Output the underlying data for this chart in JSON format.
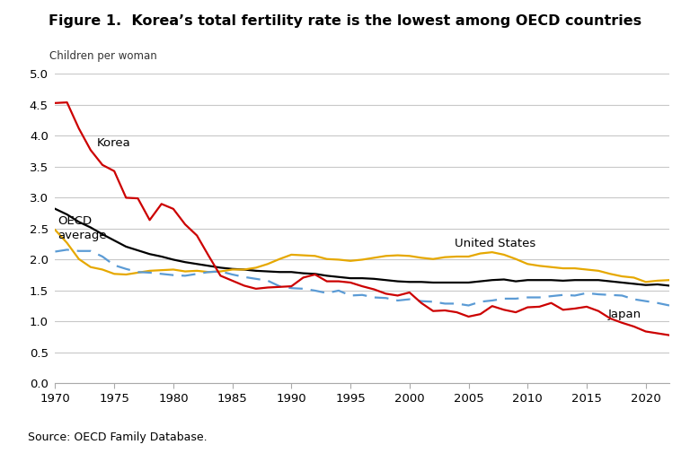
{
  "title": "Figure 1.  Korea’s total fertility rate is the lowest among OECD countries",
  "ylabel": "Children per woman",
  "source": "Source: OECD Family Database.",
  "ylim": [
    0.0,
    5.0
  ],
  "xlim": [
    1970,
    2022
  ],
  "yticks": [
    0.0,
    0.5,
    1.0,
    1.5,
    2.0,
    2.5,
    3.0,
    3.5,
    4.0,
    4.5,
    5.0
  ],
  "xticks": [
    1970,
    1975,
    1980,
    1985,
    1990,
    1995,
    2000,
    2005,
    2010,
    2015,
    2020
  ],
  "korea_years": [
    1970,
    1971,
    1972,
    1973,
    1974,
    1975,
    1976,
    1977,
    1978,
    1979,
    1980,
    1981,
    1982,
    1983,
    1984,
    1985,
    1986,
    1987,
    1988,
    1989,
    1990,
    1991,
    1992,
    1993,
    1994,
    1995,
    1996,
    1997,
    1998,
    1999,
    2000,
    2001,
    2002,
    2003,
    2004,
    2005,
    2006,
    2007,
    2008,
    2009,
    2010,
    2011,
    2012,
    2013,
    2014,
    2015,
    2016,
    2017,
    2018,
    2019,
    2020,
    2021,
    2022
  ],
  "korea_values": [
    4.53,
    4.54,
    4.12,
    3.77,
    3.53,
    3.43,
    3.0,
    2.99,
    2.64,
    2.9,
    2.82,
    2.57,
    2.39,
    2.06,
    1.74,
    1.66,
    1.58,
    1.53,
    1.55,
    1.56,
    1.57,
    1.71,
    1.76,
    1.65,
    1.65,
    1.63,
    1.57,
    1.52,
    1.45,
    1.42,
    1.47,
    1.3,
    1.17,
    1.18,
    1.15,
    1.08,
    1.12,
    1.25,
    1.19,
    1.15,
    1.23,
    1.24,
    1.3,
    1.19,
    1.21,
    1.24,
    1.17,
    1.05,
    0.98,
    0.92,
    0.84,
    0.81,
    0.78
  ],
  "oecd_years": [
    1970,
    1971,
    1972,
    1973,
    1974,
    1975,
    1976,
    1977,
    1978,
    1979,
    1980,
    1981,
    1982,
    1983,
    1984,
    1985,
    1986,
    1987,
    1988,
    1989,
    1990,
    1991,
    1992,
    1993,
    1994,
    1995,
    1996,
    1997,
    1998,
    1999,
    2000,
    2001,
    2002,
    2003,
    2004,
    2005,
    2006,
    2007,
    2008,
    2009,
    2010,
    2011,
    2012,
    2013,
    2014,
    2015,
    2016,
    2017,
    2018,
    2019,
    2020,
    2021,
    2022
  ],
  "oecd_values": [
    2.82,
    2.73,
    2.61,
    2.52,
    2.41,
    2.31,
    2.21,
    2.15,
    2.09,
    2.05,
    2.0,
    1.96,
    1.93,
    1.9,
    1.87,
    1.85,
    1.84,
    1.82,
    1.81,
    1.8,
    1.8,
    1.78,
    1.77,
    1.74,
    1.72,
    1.7,
    1.7,
    1.69,
    1.67,
    1.65,
    1.64,
    1.64,
    1.63,
    1.63,
    1.63,
    1.63,
    1.65,
    1.67,
    1.68,
    1.65,
    1.67,
    1.67,
    1.67,
    1.66,
    1.67,
    1.67,
    1.67,
    1.65,
    1.63,
    1.61,
    1.59,
    1.6,
    1.58
  ],
  "us_years": [
    1970,
    1971,
    1972,
    1973,
    1974,
    1975,
    1976,
    1977,
    1978,
    1979,
    1980,
    1981,
    1982,
    1983,
    1984,
    1985,
    1986,
    1987,
    1988,
    1989,
    1990,
    1991,
    1992,
    1993,
    1994,
    1995,
    1996,
    1997,
    1998,
    1999,
    2000,
    2001,
    2002,
    2003,
    2004,
    2005,
    2006,
    2007,
    2008,
    2009,
    2010,
    2011,
    2012,
    2013,
    2014,
    2015,
    2016,
    2017,
    2018,
    2019,
    2020,
    2021,
    2022
  ],
  "us_values": [
    2.48,
    2.27,
    2.01,
    1.88,
    1.84,
    1.77,
    1.76,
    1.79,
    1.82,
    1.83,
    1.84,
    1.81,
    1.82,
    1.8,
    1.81,
    1.84,
    1.84,
    1.87,
    1.93,
    2.01,
    2.08,
    2.07,
    2.06,
    2.01,
    2.0,
    1.98,
    2.0,
    2.03,
    2.06,
    2.07,
    2.06,
    2.03,
    2.01,
    2.04,
    2.05,
    2.05,
    2.1,
    2.12,
    2.08,
    2.01,
    1.93,
    1.9,
    1.88,
    1.86,
    1.86,
    1.84,
    1.82,
    1.77,
    1.73,
    1.71,
    1.64,
    1.66,
    1.67
  ],
  "japan_years": [
    1970,
    1971,
    1972,
    1973,
    1974,
    1975,
    1976,
    1977,
    1978,
    1979,
    1980,
    1981,
    1982,
    1983,
    1984,
    1985,
    1986,
    1987,
    1988,
    1989,
    1990,
    1991,
    1992,
    1993,
    1994,
    1995,
    1996,
    1997,
    1998,
    1999,
    2000,
    2001,
    2002,
    2003,
    2004,
    2005,
    2006,
    2007,
    2008,
    2009,
    2010,
    2011,
    2012,
    2013,
    2014,
    2015,
    2016,
    2017,
    2018,
    2019,
    2020,
    2021,
    2022
  ],
  "japan_values": [
    2.13,
    2.16,
    2.14,
    2.14,
    2.05,
    1.91,
    1.85,
    1.8,
    1.79,
    1.77,
    1.75,
    1.74,
    1.77,
    1.8,
    1.81,
    1.76,
    1.72,
    1.69,
    1.66,
    1.57,
    1.54,
    1.53,
    1.5,
    1.46,
    1.5,
    1.42,
    1.43,
    1.39,
    1.38,
    1.34,
    1.36,
    1.33,
    1.32,
    1.29,
    1.29,
    1.26,
    1.32,
    1.34,
    1.37,
    1.37,
    1.39,
    1.39,
    1.41,
    1.43,
    1.42,
    1.46,
    1.44,
    1.43,
    1.42,
    1.36,
    1.33,
    1.3,
    1.26
  ],
  "korea_color": "#cc0000",
  "oecd_color": "#000000",
  "us_color": "#e6a800",
  "japan_color": "#5b9bd5",
  "korea_label": "Korea",
  "oecd_label": "OECD\naverage",
  "us_label": "United States",
  "japan_label": "Japan",
  "background_color": "#ffffff",
  "grid_color": "#c8c8c8"
}
